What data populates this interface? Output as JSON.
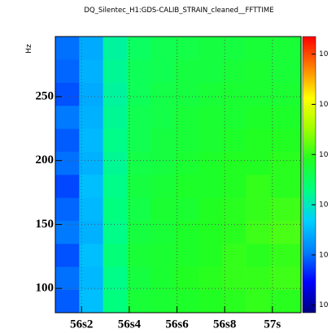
{
  "chart_data": {
    "type": "heatmap",
    "title": "DQ_Silentec_H1:GDS-CALIB_STRAIN_cleaned__FFTTIME",
    "y_label": "Hz",
    "xbins": [
      56.09,
      56.19,
      56.29,
      56.39,
      56.49,
      56.59,
      56.69,
      56.79,
      56.89,
      56.99,
      57.12
    ],
    "ybins": [
      81,
      99,
      117,
      135,
      153,
      171,
      189,
      207,
      225,
      243,
      261,
      279,
      297
    ],
    "z": [
      [
        1.05,
        1.7,
        2.45,
        2.9,
        2.95,
        3.0,
        3.05,
        3.1,
        3.15,
        3.1
      ],
      [
        1.15,
        1.65,
        2.4,
        2.85,
        2.95,
        3.05,
        3.1,
        3.15,
        3.15,
        3.2
      ],
      [
        1.0,
        1.7,
        2.5,
        2.9,
        2.95,
        3.0,
        3.05,
        3.15,
        3.1,
        3.15
      ],
      [
        1.2,
        1.6,
        2.4,
        2.85,
        2.9,
        3.0,
        3.05,
        3.1,
        3.2,
        3.25
      ],
      [
        1.1,
        1.65,
        2.45,
        2.8,
        2.95,
        2.95,
        3.05,
        3.1,
        3.15,
        3.2
      ],
      [
        0.95,
        1.7,
        2.4,
        2.85,
        2.9,
        3.0,
        3.0,
        3.05,
        3.15,
        3.1
      ],
      [
        1.15,
        1.6,
        2.35,
        2.8,
        2.85,
        2.95,
        3.0,
        3.05,
        3.05,
        3.1
      ],
      [
        1.05,
        1.65,
        2.4,
        2.75,
        2.85,
        2.9,
        2.95,
        3.0,
        3.05,
        3.05
      ],
      [
        1.2,
        1.6,
        2.35,
        2.75,
        2.8,
        2.9,
        2.95,
        2.95,
        3.0,
        3.0
      ],
      [
        1.0,
        1.55,
        2.3,
        2.7,
        2.8,
        2.85,
        2.9,
        2.95,
        2.95,
        2.95
      ],
      [
        1.1,
        1.6,
        2.35,
        2.7,
        2.75,
        2.85,
        2.85,
        2.9,
        2.95,
        2.9
      ],
      [
        1.15,
        1.55,
        2.3,
        2.65,
        2.75,
        2.8,
        2.85,
        2.85,
        2.9,
        2.9
      ]
    ],
    "xlim": [
      56.09,
      57.12
    ],
    "xticks": [
      {
        "value": 56.2,
        "label": "56s2"
      },
      {
        "value": 56.4,
        "label": "56s4"
      },
      {
        "value": 56.6,
        "label": "56s6"
      },
      {
        "value": 56.8,
        "label": "56s8"
      },
      {
        "value": 57.0,
        "label": "57s"
      }
    ],
    "ylim": [
      81,
      297
    ],
    "yticks": [
      100,
      150,
      200,
      250
    ],
    "zlim": [
      0,
      5.5
    ],
    "zticks": [
      {
        "value": 0.15,
        "label": "10"
      },
      {
        "value": 1.15,
        "label": "10"
      },
      {
        "value": 2.15,
        "label": "10"
      },
      {
        "value": 3.15,
        "label": "10"
      },
      {
        "value": 4.15,
        "label": "10"
      },
      {
        "value": 5.15,
        "label": "10"
      }
    ],
    "colormap": [
      "#000080",
      "#0000ff",
      "#0080ff",
      "#00d0ff",
      "#00ff80",
      "#20ff20",
      "#a0ff00",
      "#ffff00",
      "#ff8000",
      "#ff0000"
    ],
    "grid": true
  }
}
